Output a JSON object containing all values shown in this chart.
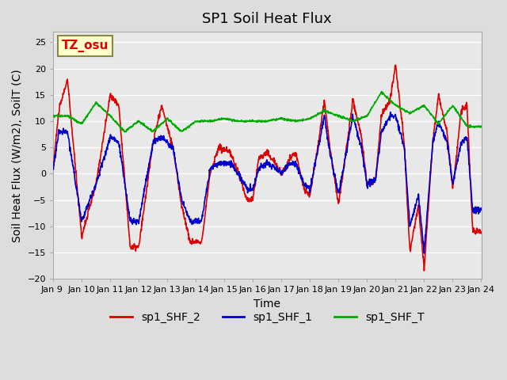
{
  "title": "SP1 Soil Heat Flux",
  "xlabel": "Time",
  "ylabel": "Soil Heat Flux (W/m2), SoilT (C)",
  "ylim": [
    -20,
    27
  ],
  "yticks": [
    -20,
    -15,
    -10,
    -5,
    0,
    5,
    10,
    15,
    20,
    25
  ],
  "xlim": [
    0,
    15
  ],
  "xtick_labels": [
    "Jan 9 ",
    "Jan 10",
    "Jan 11",
    "Jan 12",
    "Jan 13",
    "Jan 14",
    "Jan 15",
    "Jan 16",
    "Jan 17",
    "Jan 18",
    "Jan 19",
    "Jan 20",
    "Jan 21",
    "Jan 22",
    "Jan 23",
    "Jan 24"
  ],
  "legend_labels": [
    "sp1_SHF_2",
    "sp1_SHF_1",
    "sp1_SHF_T"
  ],
  "legend_colors": [
    "#dd0000",
    "#0000cc",
    "#00aa00"
  ],
  "annotation_text": "TZ_osu",
  "annotation_color": "#dd0000",
  "annotation_bg": "#ffffcc",
  "background_color": "#e8e8e8",
  "plot_bg": "#e8e8e8",
  "grid_color": "#ffffff",
  "title_fontsize": 13,
  "label_fontsize": 10
}
